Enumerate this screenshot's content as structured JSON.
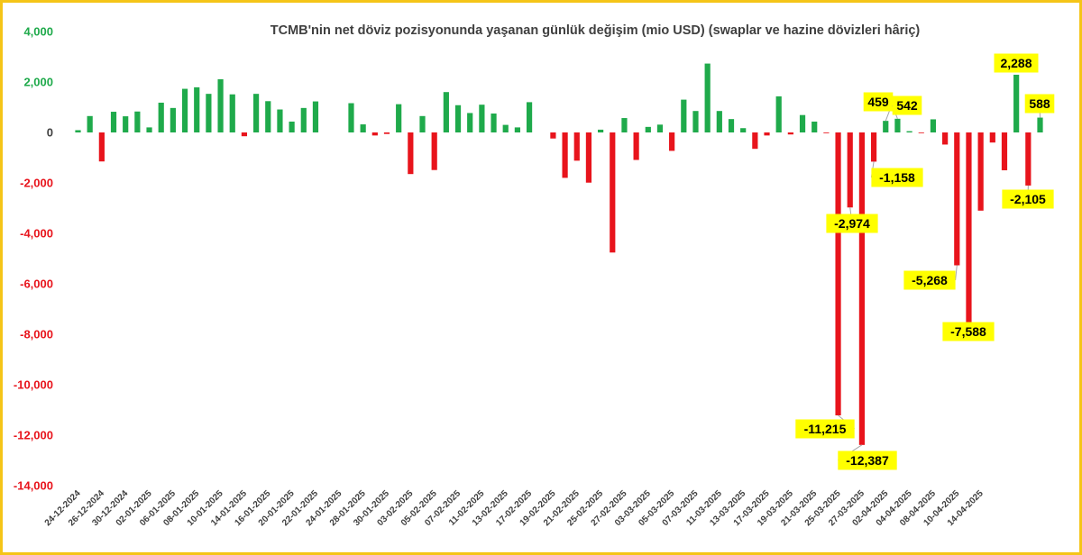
{
  "chart_data": {
    "type": "bar",
    "title": "TCMB'nin net döviz pozisyonunda yaşanan günlük değişim (mio USD) (swaplar ve hazine dövizleri hâriç)",
    "xlabel": "",
    "ylabel": "",
    "ylim": [
      -14000,
      4000
    ],
    "yticks": [
      {
        "value": 4000,
        "label": "4,000"
      },
      {
        "value": 2000,
        "label": "2,000"
      },
      {
        "value": 0,
        "label": "0"
      },
      {
        "value": -2000,
        "label": "-2,000"
      },
      {
        "value": -4000,
        "label": "-4,000"
      },
      {
        "value": -6000,
        "label": "-6,000"
      },
      {
        "value": -8000,
        "label": "-8,000"
      },
      {
        "value": -10000,
        "label": "-10,000"
      },
      {
        "value": -12000,
        "label": "-12,000"
      },
      {
        "value": -14000,
        "label": "-14,000"
      }
    ],
    "grid": false,
    "legend": "none",
    "colors": {
      "positive": "#1faa4b",
      "negative": "#e8141c",
      "positive_tick": "#1faa4b",
      "negative_tick": "#e8141c",
      "zero_tick": "#404040",
      "label_bg": "#ffff00",
      "border": "#f5c518"
    },
    "values": [
      90,
      650,
      -1150,
      820,
      640,
      830,
      200,
      1180,
      970,
      1730,
      1790,
      1530,
      2110,
      1510,
      -150,
      1530,
      1240,
      910,
      430,
      970,
      1230,
      0,
      0,
      1160,
      320,
      -120,
      -60,
      1120,
      -1650,
      650,
      -1490,
      1600,
      1080,
      770,
      1100,
      750,
      300,
      200,
      1200,
      0,
      -240,
      -1800,
      -1120,
      -1990,
      110,
      -4760,
      570,
      -1090,
      220,
      310,
      -730,
      1300,
      850,
      2730,
      850,
      530,
      170,
      -650,
      -120,
      1430,
      -80,
      690,
      430,
      -30,
      -11215,
      -2974,
      -12387,
      -1158,
      459,
      542,
      50,
      -20,
      520,
      -480,
      -5268,
      -7588,
      -3100,
      -400,
      -1500,
      2288,
      -2105,
      588
    ],
    "tick_dates": [
      "24-12-2024",
      "26-12-2024",
      "30-12-2024",
      "02-01-2025",
      "06-01-2025",
      "08-01-2025",
      "10-01-2025",
      "14-01-2025",
      "16-01-2025",
      "20-01-2025",
      "22-01-2025",
      "24-01-2025",
      "28-01-2025",
      "30-01-2025",
      "03-02-2025",
      "05-02-2025",
      "07-02-2025",
      "11-02-2025",
      "13-02-2025",
      "17-02-2025",
      "19-02-2025",
      "21-02-2025",
      "25-02-2025",
      "27-02-2025",
      "03-03-2025",
      "05-03-2025",
      "07-03-2025",
      "11-03-2025",
      "13-03-2025",
      "17-03-2025",
      "19-03-2025",
      "21-03-2025",
      "25-03-2025",
      "27-03-2025",
      "02-04-2025",
      "04-04-2025",
      "08-04-2025",
      "10-04-2025",
      "14-04-2025"
    ],
    "tick_bar_index": [
      0,
      2,
      4,
      6,
      8,
      10,
      12,
      14,
      16,
      18,
      20,
      22,
      24,
      26,
      28,
      30,
      32,
      34,
      36,
      38,
      40,
      42,
      44,
      46,
      48,
      50,
      52,
      54,
      56,
      58,
      60,
      62,
      64,
      66,
      68,
      70,
      72,
      74,
      76
    ],
    "annotations": [
      {
        "bar": 64,
        "text": "-11,215",
        "side": "left"
      },
      {
        "bar": 65,
        "text": "-2,974",
        "side": "mid"
      },
      {
        "bar": 66,
        "text": "-12,387",
        "side": "right"
      },
      {
        "bar": 67,
        "text": "-1,158",
        "side": "right"
      },
      {
        "bar": 68,
        "text": "459",
        "side": "left"
      },
      {
        "bar": 69,
        "text": "542",
        "side": "right"
      },
      {
        "bar": 74,
        "text": "-5,268",
        "side": "left"
      },
      {
        "bar": 75,
        "text": "-7,588",
        "side": "right"
      },
      {
        "bar": 79,
        "text": "2,288",
        "side": "mid"
      },
      {
        "bar": 80,
        "text": "-2,105",
        "side": "mid"
      },
      {
        "bar": 81,
        "text": "588",
        "side": "mid"
      }
    ]
  }
}
